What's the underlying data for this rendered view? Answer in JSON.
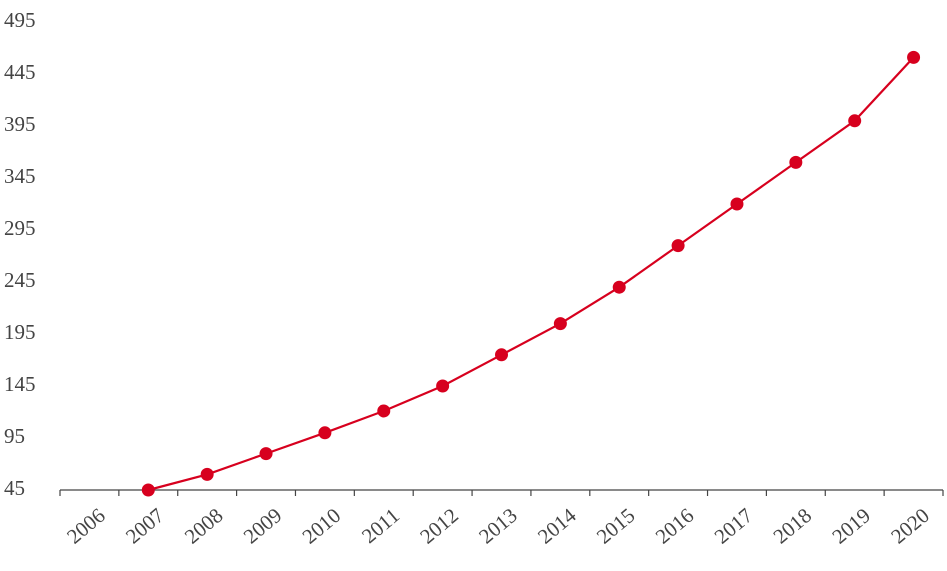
{
  "chart_data": {
    "type": "line",
    "categories": [
      "2006",
      "2007",
      "2008",
      "2009",
      "2010",
      "2011",
      "2012",
      "2013",
      "2014",
      "2015",
      "2016",
      "2017",
      "2018",
      "2019",
      "2020"
    ],
    "series": [
      {
        "color": "#d7001e",
        "values": [
          null,
          45,
          60,
          80,
          100,
          121,
          145,
          175,
          205,
          240,
          280,
          320,
          360,
          400,
          461
        ]
      }
    ],
    "ylim": [
      45,
      495
    ],
    "yticks": [
      45,
      95,
      145,
      195,
      245,
      295,
      345,
      395,
      445,
      495
    ],
    "grid": false
  }
}
